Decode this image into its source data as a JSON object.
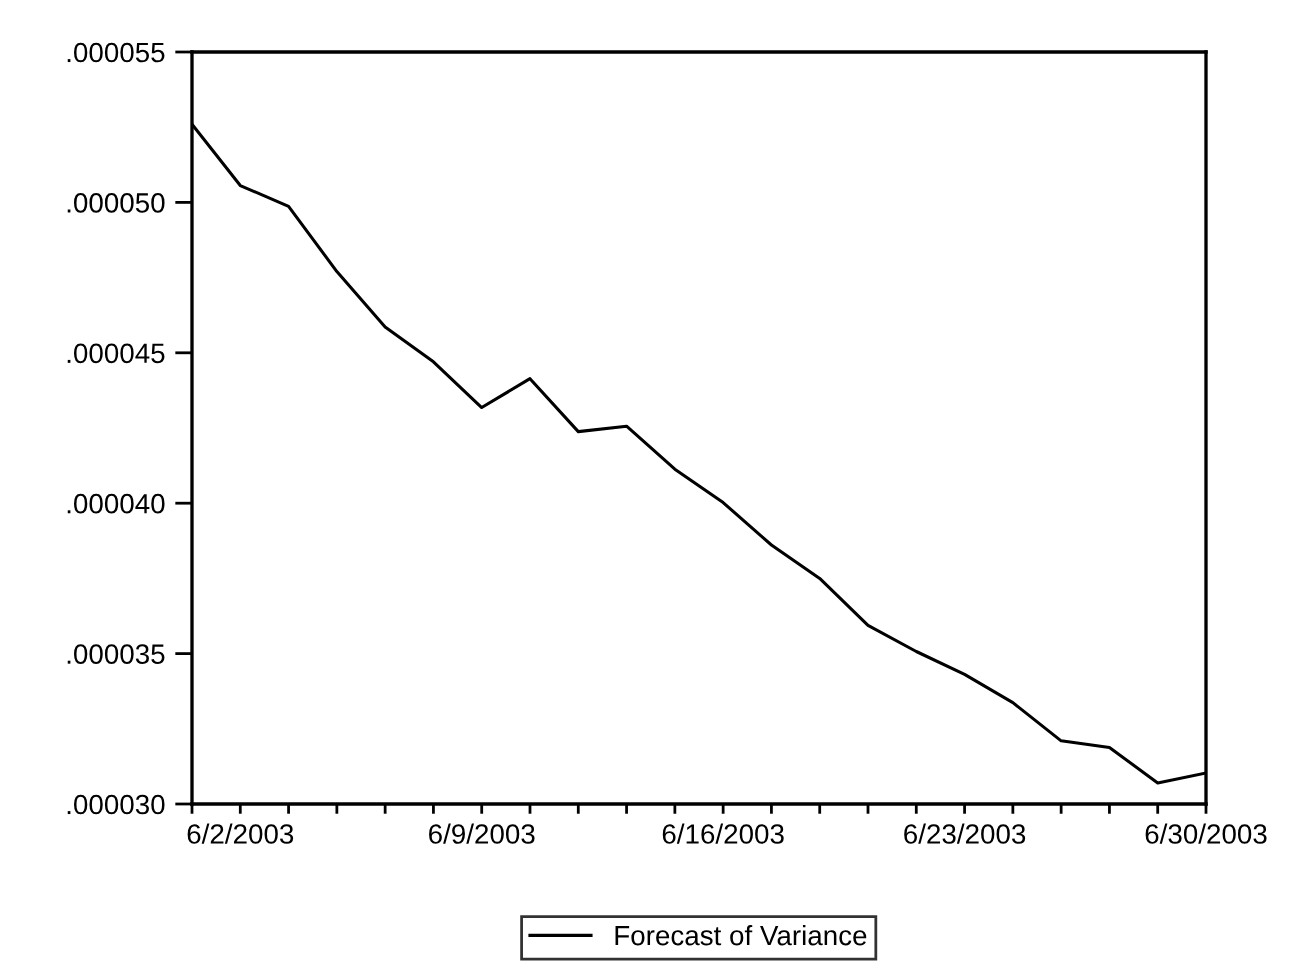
{
  "chart_data": {
    "type": "line",
    "categories": [
      null,
      "6/2/2003",
      null,
      null,
      null,
      null,
      "6/9/2003",
      null,
      null,
      null,
      null,
      "6/16/2003",
      null,
      null,
      null,
      null,
      "6/23/2003",
      null,
      null,
      null,
      null,
      "6/30/2003"
    ],
    "series": [
      {
        "name": "Forecast of Variance",
        "color": "#000000",
        "values": [
          5.26e-05,
          5.056e-05,
          4.987e-05,
          4.77e-05,
          4.586e-05,
          4.47e-05,
          4.318e-05,
          4.414e-05,
          4.238e-05,
          4.256e-05,
          4.113e-05,
          4.002e-05,
          3.861e-05,
          3.75e-05,
          3.594e-05,
          3.507e-05,
          3.431e-05,
          3.337e-05,
          3.21e-05,
          3.188e-05,
          3.07e-05,
          3.103e-05
        ]
      }
    ],
    "ylim": [
      3e-05,
      5.5e-05
    ],
    "yticks": [
      {
        "value": 3e-05,
        "label": ".000030"
      },
      {
        "value": 3.5e-05,
        "label": ".000035"
      },
      {
        "value": 4e-05,
        "label": ".000040"
      },
      {
        "value": 4.5e-05,
        "label": ".000045"
      },
      {
        "value": 5e-05,
        "label": ".000050"
      },
      {
        "value": 5.5e-05,
        "label": ".000055"
      }
    ],
    "grid": false,
    "legend": "bottom",
    "line_style": "solid",
    "marker": "none"
  }
}
